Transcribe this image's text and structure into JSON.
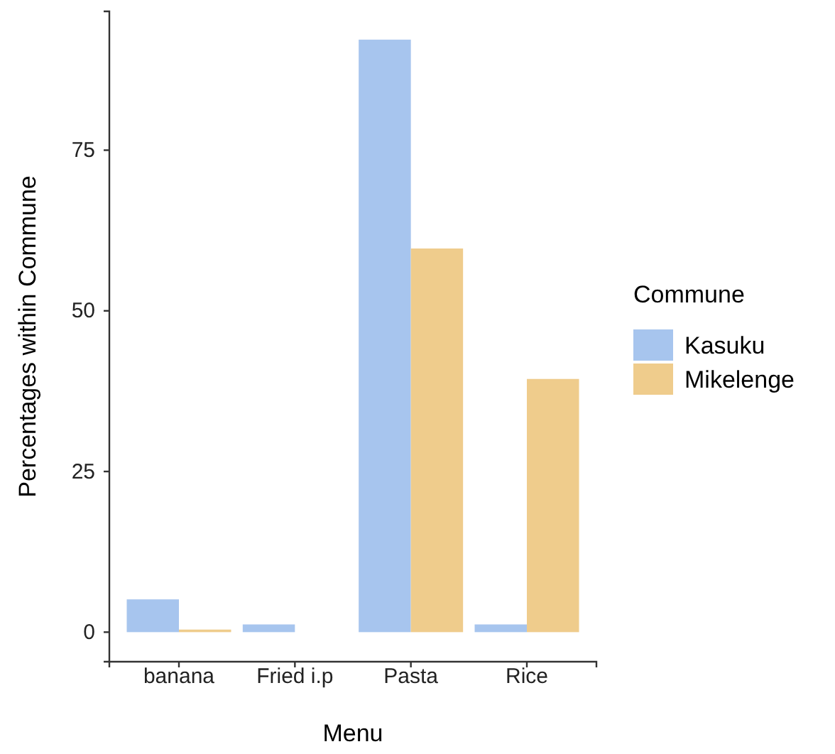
{
  "chart_data": {
    "type": "bar",
    "xlabel": "Menu",
    "ylabel": "Percentages within Commune",
    "legend_title": "Commune",
    "legend": "right",
    "categories": [
      "banana",
      "Fried i.p",
      "Pasta",
      "Rice"
    ],
    "series": [
      {
        "name": "Kasuku",
        "color": "#a7c5ee",
        "values": [
          5.1,
          1.2,
          92.2,
          1.2
        ]
      },
      {
        "name": "Mikelenge",
        "color": "#efcc8c",
        "values": [
          0.4,
          null,
          59.7,
          39.4
        ]
      }
    ],
    "ylim": [
      -4.6,
      96.6
    ],
    "yticks": [
      0,
      25,
      50,
      75
    ],
    "grid": false
  }
}
